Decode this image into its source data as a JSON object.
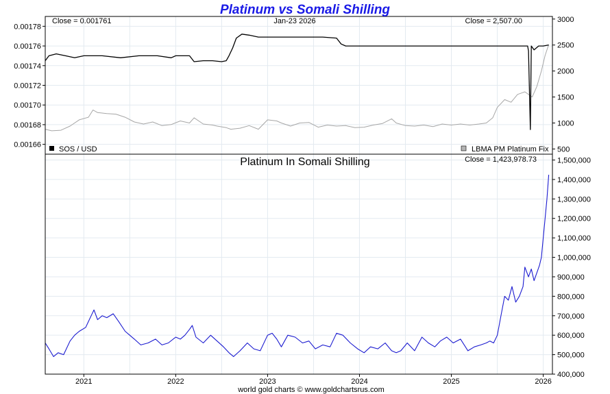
{
  "chart_data": [
    {
      "type": "line",
      "panel": "top",
      "title": "Platinum vs Somali Shilling",
      "date_label": "Jan-23  2026",
      "left_close_label": "Close = 0.001761",
      "right_close_label": "Close = 2,507.00",
      "left_axis": {
        "ylim": [
          0.00165,
          0.00179
        ],
        "ticks": [
          "0.00166",
          "0.00168",
          "0.00170",
          "0.00172",
          "0.00174",
          "0.00176",
          "0.00178"
        ],
        "tick_values": [
          0.00166,
          0.00168,
          0.0017,
          0.00172,
          0.00174,
          0.00176,
          0.00178
        ]
      },
      "right_axis": {
        "ylim": [
          400,
          3050
        ],
        "ticks": [
          "500",
          "1000",
          "1500",
          "2000",
          "2500",
          "3000"
        ],
        "tick_values": [
          500,
          1000,
          1500,
          2000,
          2500,
          3000
        ]
      },
      "series": [
        {
          "name": "SOS / USD",
          "color": "#000000",
          "axis": "left",
          "x": [
            2020.58,
            2020.62,
            2020.7,
            2020.8,
            2020.9,
            2021.0,
            2021.2,
            2021.4,
            2021.6,
            2021.8,
            2021.95,
            2022.0,
            2022.15,
            2022.2,
            2022.3,
            2022.4,
            2022.5,
            2022.55,
            2022.58,
            2022.62,
            2022.66,
            2022.72,
            2022.8,
            2022.9,
            2023.0,
            2023.2,
            2023.4,
            2023.6,
            2023.75,
            2023.8,
            2023.85,
            2024.0,
            2024.1,
            2024.5,
            2025.0,
            2025.5,
            2025.7,
            2025.83,
            2025.84,
            2025.86,
            2025.87,
            2025.9,
            2025.95,
            2026.0,
            2026.06
          ],
          "values": [
            0.001745,
            0.00175,
            0.001752,
            0.00175,
            0.001748,
            0.00175,
            0.00175,
            0.001748,
            0.00175,
            0.00175,
            0.001748,
            0.00175,
            0.00175,
            0.001744,
            0.001745,
            0.001745,
            0.001744,
            0.001745,
            0.00175,
            0.001758,
            0.001768,
            0.001772,
            0.001771,
            0.001769,
            0.001769,
            0.001769,
            0.001769,
            0.001769,
            0.001768,
            0.001762,
            0.00176,
            0.00176,
            0.00176,
            0.00176,
            0.00176,
            0.00176,
            0.00176,
            0.00176,
            0.001755,
            0.001675,
            0.00176,
            0.001756,
            0.00176,
            0.00176,
            0.001761
          ]
        },
        {
          "name": "LBMA PM Platinum Fix",
          "color": "#a6a6a6",
          "axis": "right",
          "x": [
            2020.58,
            2020.65,
            2020.75,
            2020.85,
            2020.95,
            2021.05,
            2021.1,
            2021.15,
            2021.25,
            2021.35,
            2021.45,
            2021.55,
            2021.65,
            2021.75,
            2021.85,
            2021.95,
            2022.05,
            2022.15,
            2022.2,
            2022.3,
            2022.4,
            2022.45,
            2022.55,
            2022.6,
            2022.7,
            2022.8,
            2022.9,
            2023.0,
            2023.1,
            2023.15,
            2023.25,
            2023.35,
            2023.45,
            2023.55,
            2023.65,
            2023.75,
            2023.85,
            2023.95,
            2024.05,
            2024.15,
            2024.25,
            2024.35,
            2024.4,
            2024.5,
            2024.6,
            2024.7,
            2024.8,
            2024.9,
            2025.0,
            2025.1,
            2025.2,
            2025.3,
            2025.38,
            2025.45,
            2025.5,
            2025.58,
            2025.65,
            2025.72,
            2025.8,
            2025.88,
            2025.93,
            2025.98,
            2026.02,
            2026.06
          ],
          "values": [
            880,
            850,
            860,
            940,
            1060,
            1110,
            1250,
            1200,
            1180,
            1170,
            1110,
            1020,
            980,
            1020,
            950,
            970,
            1040,
            1000,
            1100,
            980,
            960,
            940,
            910,
            880,
            900,
            950,
            880,
            1060,
            1040,
            1000,
            940,
            1000,
            1010,
            920,
            960,
            940,
            950,
            910,
            920,
            960,
            990,
            1080,
            1000,
            950,
            940,
            960,
            930,
            980,
            960,
            980,
            960,
            980,
            1000,
            1100,
            1300,
            1450,
            1400,
            1550,
            1600,
            1500,
            1700,
            2000,
            2300,
            2507
          ]
        }
      ],
      "legend": "bottom"
    },
    {
      "type": "line",
      "panel": "bottom",
      "title": "Platinum In Somali Shilling",
      "close_label": "Close = 1,423,978.73",
      "ylim": [
        400000,
        1530000
      ],
      "yticks": [
        "400,000",
        "500,000",
        "600,000",
        "700,000",
        "800,000",
        "900,000",
        "1,000,000",
        "1,100,000",
        "1,200,000",
        "1,300,000",
        "1,400,000",
        "1,500,000"
      ],
      "ytick_values": [
        400000,
        500000,
        600000,
        700000,
        800000,
        900000,
        1000000,
        1100000,
        1200000,
        1300000,
        1400000,
        1500000
      ],
      "xlim": [
        2020.58,
        2026.1
      ],
      "xticks": [
        "2021",
        "2022",
        "2023",
        "2024",
        "2025",
        "2026"
      ],
      "xtick_values": [
        2021,
        2022,
        2023,
        2024,
        2025,
        2026
      ],
      "series": [
        {
          "name": "",
          "color": "#1a1ad0",
          "x": [
            2020.58,
            2020.62,
            2020.67,
            2020.72,
            2020.78,
            2020.85,
            2020.9,
            2020.95,
            2021.02,
            2021.08,
            2021.11,
            2021.15,
            2021.2,
            2021.25,
            2021.32,
            2021.38,
            2021.45,
            2021.5,
            2021.55,
            2021.62,
            2021.7,
            2021.78,
            2021.85,
            2021.92,
            2022.0,
            2022.05,
            2022.1,
            2022.15,
            2022.18,
            2022.22,
            2022.3,
            2022.38,
            2022.45,
            2022.52,
            2022.58,
            2022.63,
            2022.7,
            2022.78,
            2022.85,
            2022.92,
            2023.0,
            2023.05,
            2023.1,
            2023.15,
            2023.22,
            2023.3,
            2023.38,
            2023.45,
            2023.52,
            2023.6,
            2023.68,
            2023.75,
            2023.82,
            2023.9,
            2023.98,
            2024.05,
            2024.12,
            2024.2,
            2024.28,
            2024.35,
            2024.4,
            2024.45,
            2024.52,
            2024.6,
            2024.68,
            2024.75,
            2024.82,
            2024.88,
            2024.95,
            2025.02,
            2025.1,
            2025.18,
            2025.25,
            2025.32,
            2025.38,
            2025.42,
            2025.46,
            2025.5,
            2025.54,
            2025.58,
            2025.62,
            2025.66,
            2025.7,
            2025.74,
            2025.78,
            2025.8,
            2025.84,
            2025.87,
            2025.9,
            2025.93,
            2025.96,
            2025.98,
            2026.0,
            2026.02,
            2026.04,
            2026.06
          ],
          "values": [
            560000,
            530000,
            490000,
            510000,
            500000,
            570000,
            600000,
            620000,
            640000,
            700000,
            730000,
            680000,
            700000,
            690000,
            710000,
            670000,
            620000,
            600000,
            580000,
            550000,
            560000,
            580000,
            550000,
            560000,
            590000,
            580000,
            600000,
            630000,
            650000,
            590000,
            560000,
            600000,
            570000,
            540000,
            510000,
            490000,
            520000,
            560000,
            530000,
            520000,
            600000,
            610000,
            580000,
            540000,
            600000,
            590000,
            560000,
            570000,
            530000,
            550000,
            540000,
            610000,
            600000,
            560000,
            530000,
            510000,
            540000,
            530000,
            560000,
            520000,
            510000,
            520000,
            560000,
            520000,
            590000,
            560000,
            540000,
            570000,
            590000,
            560000,
            580000,
            520000,
            540000,
            550000,
            560000,
            570000,
            560000,
            600000,
            700000,
            800000,
            780000,
            850000,
            770000,
            800000,
            850000,
            950000,
            900000,
            940000,
            880000,
            920000,
            960000,
            1000000,
            1100000,
            1200000,
            1300000,
            1423978.73
          ]
        }
      ]
    }
  ],
  "footer": "world gold charts © www.goldchartsrus.com"
}
